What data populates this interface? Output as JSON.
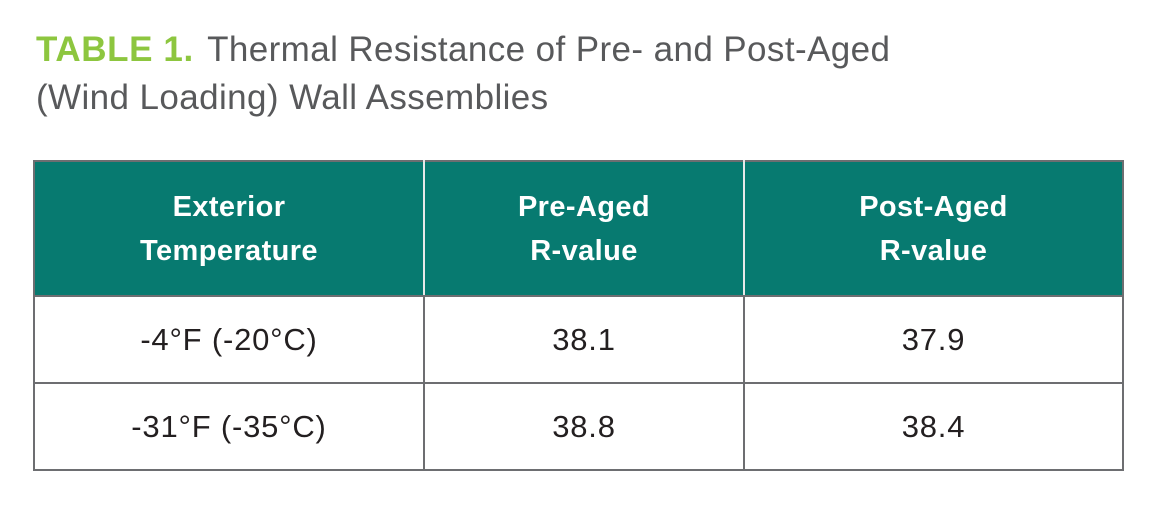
{
  "caption": {
    "label": "TABLE 1.",
    "line1": "Thermal Resistance of Pre- and Post-Aged",
    "line2": "(Wind Loading) Wall Assemblies"
  },
  "table": {
    "headers": [
      {
        "line1": "Exterior",
        "line2": "Temperature"
      },
      {
        "line1": "Pre-Aged",
        "line2": "R-value"
      },
      {
        "line1": "Post-Aged",
        "line2": "R-value"
      }
    ],
    "rows": [
      {
        "temperature": "-4°F (-20°C)",
        "pre_aged": "38.1",
        "post_aged": "37.9"
      },
      {
        "temperature": "-31°F (-35°C)",
        "pre_aged": "38.8",
        "post_aged": "38.4"
      }
    ]
  },
  "colors": {
    "accent_green": "#8dc63f",
    "header_teal": "#077a70",
    "title_gray": "#58595b",
    "border_gray": "#6d6e71",
    "body_text": "#231f20"
  },
  "chart_data": {
    "type": "table",
    "title": "TABLE 1. Thermal Resistance of Pre- and Post-Aged (Wind Loading) Wall Assemblies",
    "columns": [
      "Exterior Temperature",
      "Pre-Aged R-value",
      "Post-Aged R-value"
    ],
    "rows": [
      [
        "-4°F (-20°C)",
        38.1,
        37.9
      ],
      [
        "-31°F (-35°C)",
        38.8,
        38.4
      ]
    ]
  }
}
